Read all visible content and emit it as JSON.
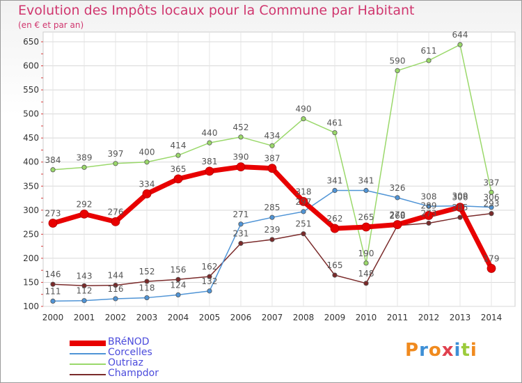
{
  "title": "Evolution des Impôts locaux pour la Commune par Habitant",
  "subtitle": "(en € et par an)",
  "logo": {
    "text": "Proxiti"
  },
  "chart_data": {
    "type": "line",
    "title": "Evolution des Impôts locaux pour la Commune par Habitant",
    "subtitle": "(en € et par an)",
    "xlabel": "",
    "ylabel": "",
    "ylim": [
      100,
      650
    ],
    "yticks": [
      100,
      150,
      200,
      250,
      300,
      350,
      400,
      450,
      500,
      550,
      600,
      650
    ],
    "grid": true,
    "legend_position": "bottom-left",
    "x": [
      "2000",
      "2001",
      "2002",
      "2003",
      "2004",
      "2005",
      "2006",
      "2007",
      "2008",
      "2009",
      "2010",
      "2011",
      "2012",
      "2013",
      "2014"
    ],
    "series": [
      {
        "name": "BRéNOD",
        "color": "#e80000",
        "width": 7,
        "values": [
          273,
          292,
          276,
          334,
          365,
          381,
          390,
          387,
          318,
          262,
          265,
          270,
          289,
          306,
          179
        ]
      },
      {
        "name": "Corcelles",
        "color": "#4f94d6",
        "width": 1.5,
        "values": [
          111,
          112,
          116,
          118,
          124,
          132,
          271,
          285,
          297,
          341,
          341,
          326,
          308,
          309,
          306
        ]
      },
      {
        "name": "Outriaz",
        "color": "#9ad86a",
        "width": 1.5,
        "values": [
          384,
          389,
          397,
          400,
          414,
          440,
          452,
          434,
          490,
          461,
          190,
          590,
          611,
          644,
          337
        ]
      },
      {
        "name": "Champdor",
        "color": "#7a2a2a",
        "width": 1.5,
        "values": [
          146,
          143,
          144,
          152,
          156,
          162,
          231,
          239,
          251,
          165,
          148,
          268,
          273,
          285,
          293
        ]
      }
    ]
  }
}
